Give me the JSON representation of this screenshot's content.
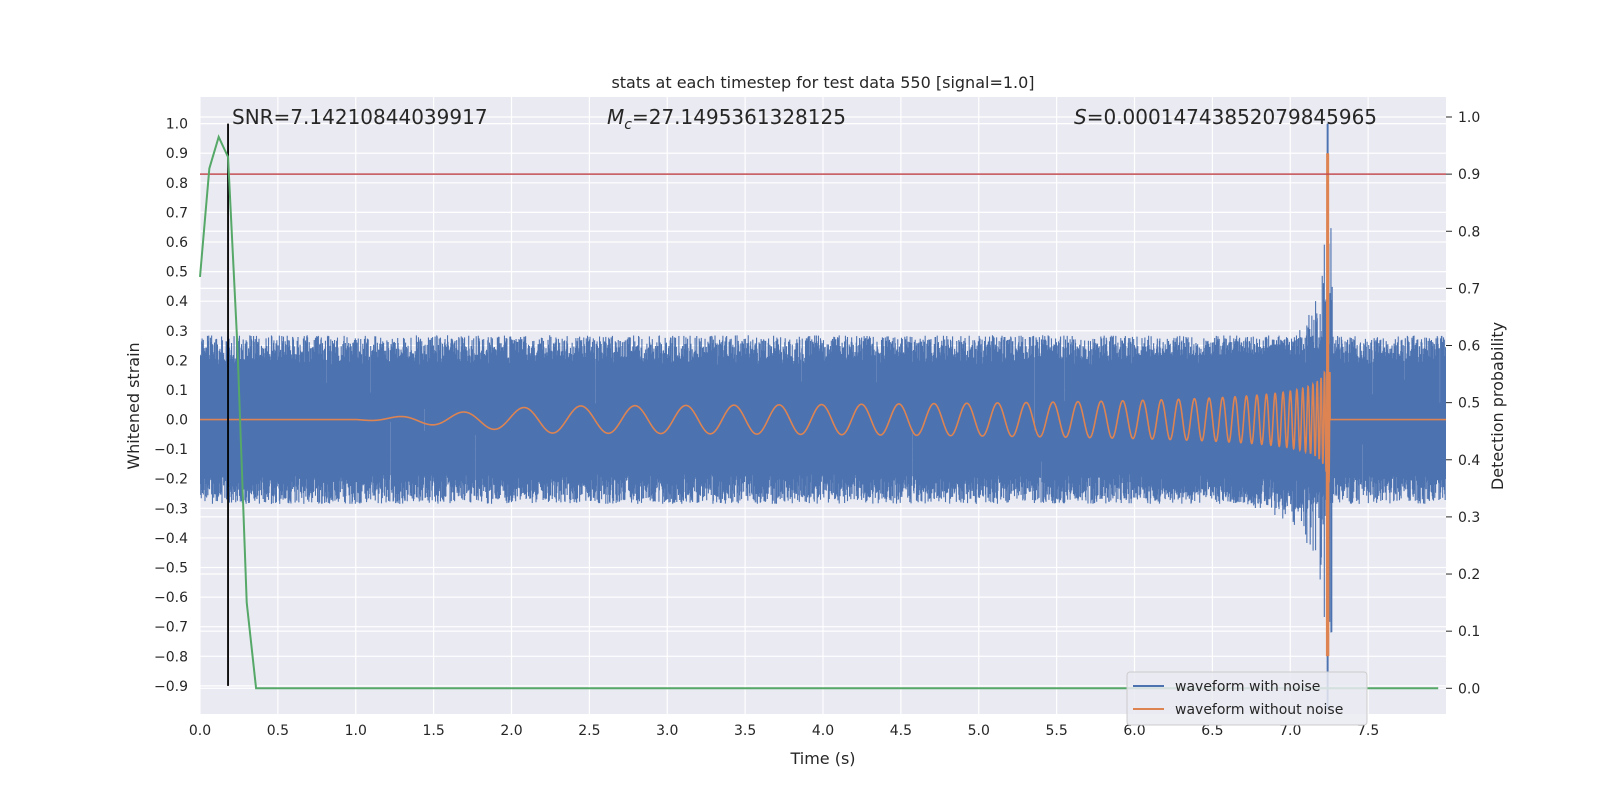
{
  "chart_data": {
    "type": "line",
    "title": "stats at each timestep for test data 550 [signal=1.0]",
    "xlabel": "Time (s)",
    "ylabel_left": "Whitened strain",
    "ylabel_right": "Detection probability",
    "xlim": [
      0.0,
      8.0
    ],
    "ylim_left": [
      -0.995,
      1.09
    ],
    "ylim_right": [
      -0.045,
      1.035
    ],
    "xticks": [
      "0.0",
      "0.5",
      "1.0",
      "1.5",
      "2.0",
      "2.5",
      "3.0",
      "3.5",
      "4.0",
      "4.5",
      "5.0",
      "5.5",
      "6.0",
      "6.5",
      "7.0",
      "7.5"
    ],
    "yticks_left": [
      "1.0",
      "0.9",
      "0.8",
      "0.7",
      "0.6",
      "0.5",
      "0.4",
      "0.3",
      "0.2",
      "0.1",
      "0.0",
      "−0.1",
      "−0.2",
      "−0.3",
      "−0.4",
      "−0.5",
      "−0.6",
      "−0.7",
      "−0.8",
      "−0.9"
    ],
    "yticks_right": [
      "1.0",
      "0.9",
      "0.8",
      "0.7",
      "0.6",
      "0.5",
      "0.4",
      "0.3",
      "0.2",
      "0.1",
      "0.0"
    ],
    "grid": true,
    "legend_placement": "lower-right",
    "annotations": {
      "snr": "SNR=7.14210844039917",
      "mc_symbol": "M",
      "mc_sub": "c",
      "mc_value": "=27.1495361328125",
      "s_symbol": "S",
      "s_value": "=0.00014743852079845965"
    },
    "colors": {
      "noise": "#4c72b0",
      "clean": "#dd8452",
      "prob": "#55a868",
      "threshold": "#c44e52",
      "marker": "#000000",
      "plot_bg": "#eaeaf2",
      "grid": "#ffffff"
    },
    "series": [
      {
        "name": "waveform with noise",
        "axis": "left",
        "noise_band": [
          -0.285,
          0.285
        ],
        "merger_time": 7.24,
        "peak": [
          1.0,
          -0.98
        ]
      },
      {
        "name": "waveform without noise",
        "axis": "left",
        "chirp_start": 1.0,
        "merger_time": 7.24,
        "peak": [
          0.9,
          -0.8
        ]
      },
      {
        "name": "",
        "axis": "right",
        "x": [
          0.0,
          0.06,
          0.12,
          0.18,
          0.24,
          0.3,
          0.36,
          0.42,
          1.0,
          2.0,
          3.0,
          4.0,
          5.0,
          6.0,
          7.0,
          7.95
        ],
        "y": [
          0.72,
          0.91,
          0.965,
          0.93,
          0.6,
          0.15,
          0.0,
          0.0,
          0.0,
          0.0,
          0.0,
          0.0,
          0.0,
          0.0,
          0.0,
          0.0
        ]
      }
    ],
    "threshold_right": 0.9,
    "marker_time": 0.18,
    "marker_range_left": [
      -0.9,
      1.0
    ]
  }
}
